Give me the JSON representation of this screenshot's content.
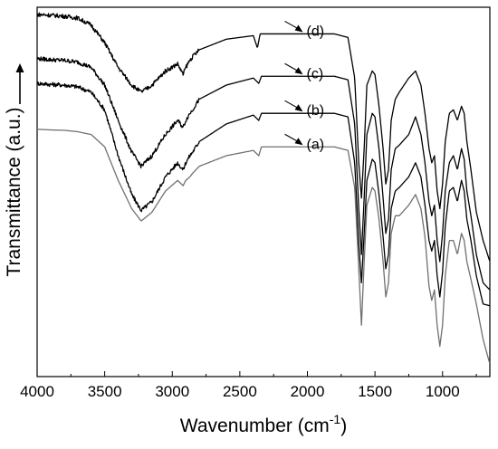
{
  "chart_data": {
    "type": "line",
    "xlabel": "Wavenumber (cm",
    "xlabel_sup": "-1",
    "xlabel_end": ")",
    "ylabel": "Transmittance (a.u.)",
    "xlim": [
      4000,
      650
    ],
    "x_reversed": true,
    "ylim": [
      0,
      1
    ],
    "y_ticks_shown": false,
    "x_ticks": [
      4000,
      3500,
      3000,
      2500,
      2000,
      1500,
      1000
    ],
    "grid": false,
    "series": [
      {
        "name": "(a)",
        "color": "#707070",
        "label_x": 2000,
        "x": [
          4000,
          3900,
          3800,
          3700,
          3600,
          3500,
          3400,
          3300,
          3230,
          3150,
          3050,
          2960,
          2920,
          2900,
          2870,
          2850,
          2800,
          2600,
          2400,
          2360,
          2340,
          2300,
          2000,
          1800,
          1700,
          1650,
          1620,
          1600,
          1580,
          1560,
          1520,
          1500,
          1470,
          1440,
          1420,
          1400,
          1380,
          1350,
          1320,
          1250,
          1200,
          1160,
          1130,
          1100,
          1080,
          1060,
          1040,
          1020,
          1000,
          980,
          950,
          920,
          890,
          860,
          840,
          820,
          790,
          750,
          700,
          650
        ],
        "y": [
          0.675,
          0.673,
          0.672,
          0.668,
          0.66,
          0.625,
          0.53,
          0.45,
          0.415,
          0.44,
          0.5,
          0.53,
          0.515,
          0.53,
          0.54,
          0.55,
          0.57,
          0.6,
          0.615,
          0.6,
          0.625,
          0.625,
          0.625,
          0.625,
          0.615,
          0.51,
          0.28,
          0.12,
          0.3,
          0.46,
          0.51,
          0.5,
          0.42,
          0.3,
          0.2,
          0.24,
          0.38,
          0.43,
          0.43,
          0.46,
          0.49,
          0.45,
          0.37,
          0.23,
          0.19,
          0.22,
          0.12,
          0.06,
          0.12,
          0.26,
          0.36,
          0.36,
          0.32,
          0.38,
          0.36,
          0.3,
          0.25,
          0.18,
          0.08,
          0.01
        ]
      },
      {
        "name": "(b)",
        "color": "#000000",
        "label_x": 2000,
        "x": [
          4000,
          3900,
          3800,
          3700,
          3600,
          3500,
          3400,
          3300,
          3230,
          3150,
          3050,
          2960,
          2920,
          2900,
          2870,
          2850,
          2800,
          2600,
          2400,
          2360,
          2340,
          2300,
          2000,
          1800,
          1700,
          1650,
          1620,
          1600,
          1580,
          1560,
          1520,
          1500,
          1470,
          1440,
          1420,
          1400,
          1380,
          1350,
          1320,
          1250,
          1200,
          1160,
          1130,
          1100,
          1080,
          1060,
          1040,
          1020,
          1000,
          980,
          950,
          920,
          890,
          860,
          840,
          820,
          790,
          750,
          700,
          650
        ],
        "y": [
          0.805,
          0.802,
          0.8,
          0.795,
          0.78,
          0.73,
          0.6,
          0.49,
          0.445,
          0.47,
          0.54,
          0.58,
          0.56,
          0.58,
          0.6,
          0.61,
          0.64,
          0.69,
          0.715,
          0.7,
          0.72,
          0.72,
          0.72,
          0.72,
          0.71,
          0.58,
          0.35,
          0.24,
          0.38,
          0.53,
          0.59,
          0.58,
          0.49,
          0.37,
          0.28,
          0.32,
          0.45,
          0.5,
          0.51,
          0.54,
          0.58,
          0.54,
          0.46,
          0.36,
          0.33,
          0.36,
          0.26,
          0.2,
          0.27,
          0.4,
          0.5,
          0.51,
          0.47,
          0.53,
          0.5,
          0.42,
          0.36,
          0.26,
          0.18,
          0.175
        ]
      },
      {
        "name": "(c)",
        "color": "#000000",
        "label_x": 2000,
        "x": [
          4000,
          3900,
          3800,
          3700,
          3600,
          3500,
          3400,
          3300,
          3230,
          3150,
          3050,
          2960,
          2920,
          2900,
          2870,
          2850,
          2800,
          2600,
          2400,
          2360,
          2340,
          2300,
          2000,
          1800,
          1700,
          1650,
          1620,
          1600,
          1580,
          1560,
          1520,
          1500,
          1470,
          1440,
          1420,
          1400,
          1380,
          1350,
          1320,
          1250,
          1200,
          1160,
          1130,
          1100,
          1080,
          1060,
          1040,
          1020,
          1000,
          980,
          950,
          920,
          890,
          860,
          840,
          820,
          790,
          750,
          700,
          650
        ],
        "y": [
          0.875,
          0.872,
          0.87,
          0.865,
          0.85,
          0.8,
          0.7,
          0.61,
          0.57,
          0.6,
          0.66,
          0.7,
          0.68,
          0.7,
          0.72,
          0.73,
          0.76,
          0.8,
          0.82,
          0.805,
          0.825,
          0.825,
          0.825,
          0.825,
          0.815,
          0.69,
          0.45,
          0.32,
          0.48,
          0.66,
          0.72,
          0.71,
          0.62,
          0.48,
          0.38,
          0.42,
          0.56,
          0.62,
          0.63,
          0.66,
          0.71,
          0.66,
          0.58,
          0.47,
          0.43,
          0.46,
          0.36,
          0.3,
          0.38,
          0.5,
          0.58,
          0.6,
          0.56,
          0.62,
          0.59,
          0.5,
          0.43,
          0.32,
          0.24,
          0.22
        ]
      },
      {
        "name": "(d)",
        "color": "#000000",
        "label_x": 2000,
        "x": [
          4000,
          3900,
          3800,
          3700,
          3600,
          3500,
          3400,
          3300,
          3230,
          3150,
          3050,
          2960,
          2920,
          2900,
          2870,
          2850,
          2800,
          2600,
          2400,
          2370,
          2350,
          2300,
          2000,
          1800,
          1700,
          1650,
          1620,
          1600,
          1580,
          1560,
          1520,
          1500,
          1470,
          1440,
          1420,
          1400,
          1380,
          1350,
          1320,
          1250,
          1200,
          1160,
          1130,
          1100,
          1080,
          1060,
          1040,
          1020,
          1000,
          980,
          950,
          920,
          890,
          860,
          840,
          820,
          790,
          750,
          700,
          650
        ],
        "y": [
          1.0,
          0.998,
          0.995,
          0.99,
          0.97,
          0.92,
          0.85,
          0.8,
          0.78,
          0.8,
          0.84,
          0.86,
          0.83,
          0.85,
          0.87,
          0.88,
          0.9,
          0.93,
          0.94,
          0.905,
          0.945,
          0.945,
          0.945,
          0.945,
          0.935,
          0.82,
          0.58,
          0.48,
          0.62,
          0.8,
          0.84,
          0.83,
          0.74,
          0.62,
          0.52,
          0.56,
          0.7,
          0.76,
          0.78,
          0.82,
          0.84,
          0.8,
          0.72,
          0.62,
          0.58,
          0.6,
          0.5,
          0.45,
          0.52,
          0.64,
          0.72,
          0.73,
          0.7,
          0.74,
          0.72,
          0.64,
          0.56,
          0.44,
          0.36,
          0.3
        ]
      }
    ]
  }
}
